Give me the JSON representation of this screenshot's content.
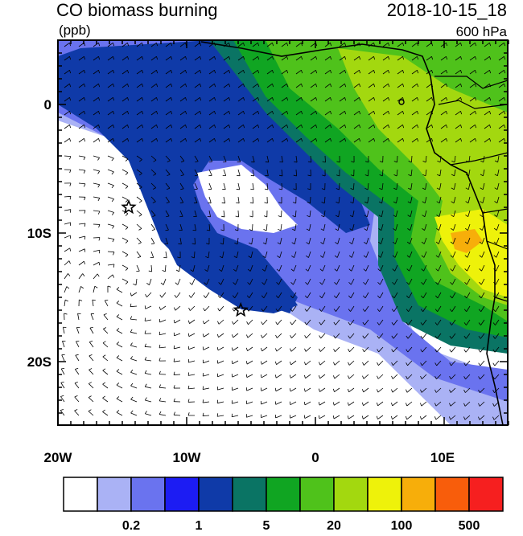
{
  "header": {
    "title": "CO biomass burning",
    "datetime": "2018-10-15_18",
    "units": "(ppb)",
    "level": "600 hPa"
  },
  "axes": {
    "lat_labels": [
      "0",
      "10S",
      "20S"
    ],
    "lon_labels": [
      "20W",
      "10W",
      "0",
      "10E"
    ]
  },
  "colorbar": {
    "colors": [
      "#ffffff",
      "#aab2f5",
      "#6a73ef",
      "#1c1cf3",
      "#0f3aa8",
      "#0a7464",
      "#10a522",
      "#4fc21b",
      "#a3d80f",
      "#eef20a",
      "#f7ae0a",
      "#f85d0b",
      "#f61f1f"
    ],
    "labels": [
      "0.2",
      "1",
      "5",
      "20",
      "100",
      "500"
    ]
  },
  "markers": [
    {
      "name": "star-marker-1",
      "lon": -14.5,
      "lat": -8.0
    },
    {
      "name": "star-marker-2",
      "lon": -5.8,
      "lat": -16.0
    }
  ]
}
